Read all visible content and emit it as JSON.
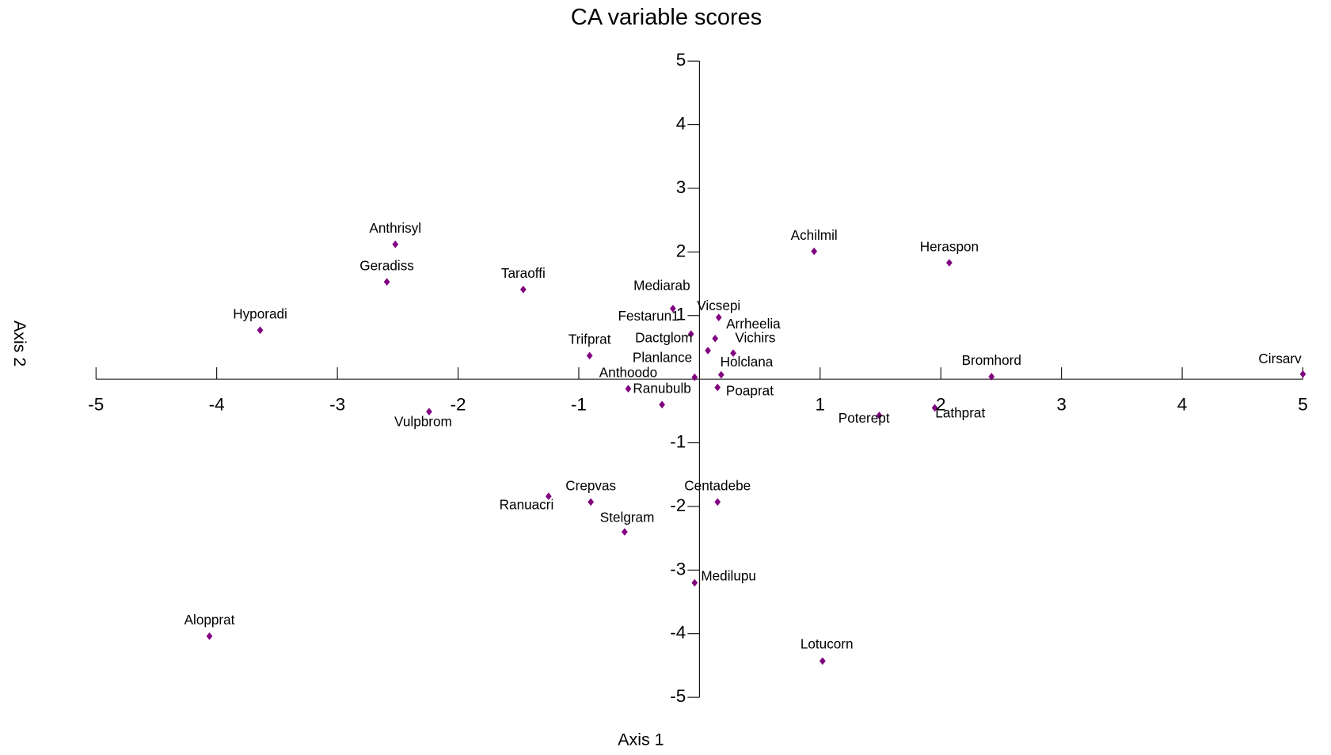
{
  "chart_data": {
    "type": "scatter",
    "title": "CA variable scores",
    "x_label": "Axis 1",
    "y_label": "Axis 2",
    "color": "#800080",
    "xlim": [
      -5,
      5
    ],
    "ylim": [
      -5,
      5
    ],
    "xticks": [
      -5,
      -4,
      -3,
      -2,
      -1,
      1,
      2,
      3,
      4,
      5
    ],
    "yticks": [
      5,
      4,
      3,
      2,
      1,
      -1,
      -2,
      -3,
      -4,
      -5
    ],
    "labels": [
      "Anthrisyl",
      "Geradiss",
      "Taraoffi",
      "Hyporadi",
      "Achilmil",
      "Heraspon",
      "Mediarab",
      "Vicsepi",
      "Festarun1",
      "Arrheelia",
      "Dactglom",
      "Vichirs",
      "Trifprat",
      "Planlance",
      "Holclana",
      "Bromhord",
      "Cirsarv",
      "Anthoodo",
      "Poaprat",
      "Ranubulb",
      "Vulpbrom",
      "Poterept",
      "Lathprat",
      "Ranuacri",
      "Crepvas",
      "Centadebe",
      "Stelgram",
      "Medilupu",
      "Alopprat",
      "Lotucorn"
    ],
    "x": [
      -2.52,
      -2.59,
      -1.46,
      -3.64,
      0.95,
      2.07,
      -0.22,
      0.16,
      -0.07,
      0.13,
      0.07,
      0.28,
      -0.91,
      -0.04,
      0.18,
      2.42,
      5.0,
      -0.59,
      0.15,
      -0.31,
      -2.24,
      1.49,
      1.95,
      -1.25,
      -0.9,
      0.15,
      -0.62,
      -0.04,
      -4.06,
      1.02
    ],
    "y": [
      2.12,
      1.53,
      1.41,
      0.77,
      2.01,
      1.83,
      1.11,
      0.97,
      0.71,
      0.64,
      0.45,
      0.41,
      0.37,
      0.03,
      0.07,
      0.04,
      0.08,
      -0.15,
      -0.13,
      -0.4,
      -0.51,
      -0.57,
      -0.45,
      -1.84,
      -1.93,
      -1.93,
      -2.4,
      -3.2,
      -4.04,
      -4.43
    ]
  }
}
